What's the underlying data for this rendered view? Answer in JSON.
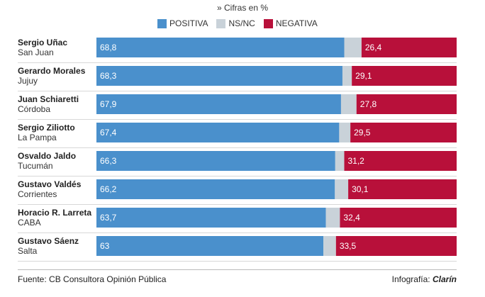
{
  "subtitle": "» Cifras en %",
  "colors": {
    "positiva": "#4a90cc",
    "nsnc": "#c9d2d9",
    "negativa": "#b8103a"
  },
  "chart_data": {
    "type": "bar",
    "orientation": "horizontal",
    "stacked": true,
    "categories": [
      {
        "name": "Sergio Uñac",
        "province": "San Juan"
      },
      {
        "name": "Gerardo Morales",
        "province": "Jujuy"
      },
      {
        "name": "Juan Schiaretti",
        "province": "Córdoba"
      },
      {
        "name": "Sergio Ziliotto",
        "province": "La Pampa"
      },
      {
        "name": "Osvaldo Jaldo",
        "province": "Tucumán"
      },
      {
        "name": "Gustavo Valdés",
        "province": "Corrientes"
      },
      {
        "name": "Horacio R. Larreta",
        "province": "CABA"
      },
      {
        "name": "Gustavo Sáenz",
        "province": "Salta"
      }
    ],
    "series": [
      {
        "name": "POSITIVA",
        "values": [
          68.8,
          68.3,
          67.9,
          67.4,
          66.3,
          66.2,
          63.7,
          63
        ],
        "labels": [
          "68,8",
          "68,3",
          "67,9",
          "67,4",
          "66,3",
          "66,2",
          "63,7",
          "63"
        ]
      },
      {
        "name": "NS/NC",
        "values": [
          4.8,
          2.6,
          4.3,
          3.1,
          2.5,
          3.7,
          3.9,
          3.5
        ]
      },
      {
        "name": "NEGATIVA",
        "values": [
          26.4,
          29.1,
          27.8,
          29.5,
          31.2,
          30.1,
          32.4,
          33.5
        ],
        "labels": [
          "26,4",
          "29,1",
          "27,8",
          "29,5",
          "31,2",
          "30,1",
          "32,4",
          "33,5"
        ]
      }
    ],
    "xlim": [
      0,
      100
    ],
    "legend_position": "top-center"
  },
  "footer": {
    "source": "Fuente: CB Consultora Opinión Pública",
    "credit_label": "Infografía: ",
    "credit_brand": "Clarín"
  }
}
